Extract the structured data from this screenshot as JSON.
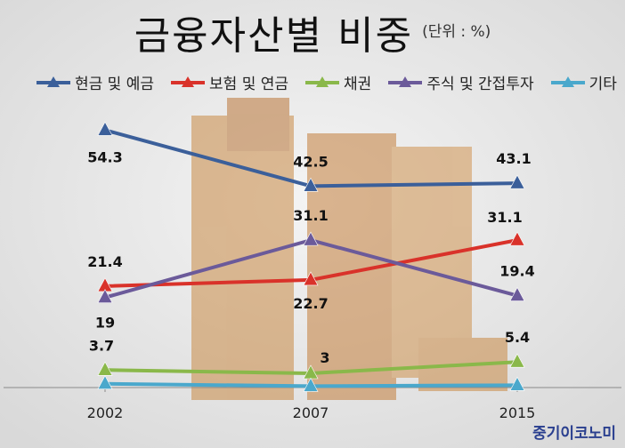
{
  "title": "금융자산별 비중",
  "unit": "(단위 : %)",
  "brand": "중기이코노미",
  "chart_data": {
    "type": "line",
    "title": "금융자산별 비중",
    "xlabel": "",
    "ylabel": "",
    "categories": [
      "2002",
      "2007",
      "2015"
    ],
    "ylim": [
      0,
      60
    ],
    "legend_position": "top",
    "series": [
      {
        "name": "현금 및 예금",
        "values": [
          54.3,
          42.5,
          43.1
        ],
        "color": "#3b5f9a"
      },
      {
        "name": "보험 및 연금",
        "values": [
          21.4,
          22.7,
          31.1
        ],
        "color": "#d9322a"
      },
      {
        "name": "채권",
        "values": [
          3.7,
          3,
          5.4
        ],
        "color": "#8ab84a"
      },
      {
        "name": "주식 및 간접투자",
        "values": [
          19,
          31.1,
          19.4
        ],
        "color": "#6b5a9a"
      },
      {
        "name": "기타",
        "values": [
          0.8,
          0.3,
          0.5
        ],
        "color": "#4aa8cc"
      }
    ],
    "data_labels": [
      {
        "series": 0,
        "index": 0,
        "text": "54.3"
      },
      {
        "series": 0,
        "index": 1,
        "text": "42.5"
      },
      {
        "series": 0,
        "index": 2,
        "text": "43.1"
      },
      {
        "series": 1,
        "index": 0,
        "text": "21.4"
      },
      {
        "series": 1,
        "index": 1,
        "text": "22.7"
      },
      {
        "series": 1,
        "index": 2,
        "text": "31.1"
      },
      {
        "series": 2,
        "index": 0,
        "text": "3.7"
      },
      {
        "series": 2,
        "index": 1,
        "text": "3"
      },
      {
        "series": 2,
        "index": 2,
        "text": "5.4"
      },
      {
        "series": 3,
        "index": 0,
        "text": "19"
      },
      {
        "series": 3,
        "index": 1,
        "text": "31.1"
      },
      {
        "series": 3,
        "index": 2,
        "text": "19.4"
      }
    ]
  }
}
